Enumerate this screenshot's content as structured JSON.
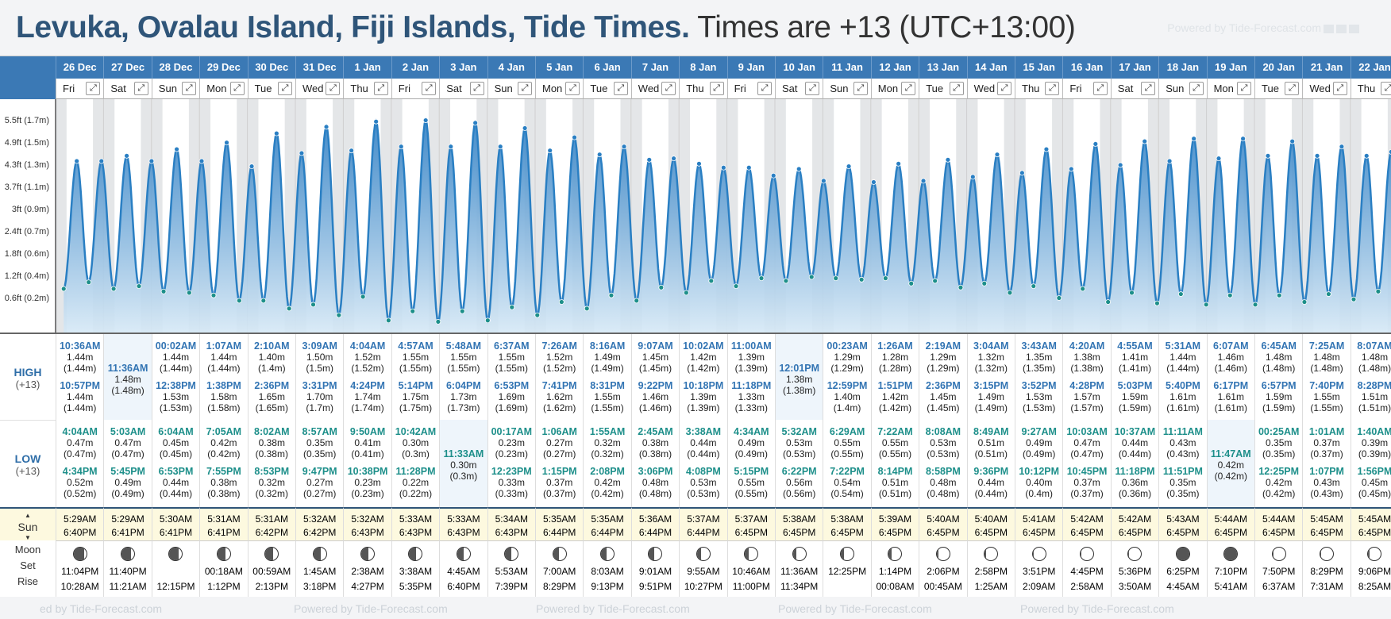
{
  "title": {
    "main": "Levuka, Ovalau Island, Fiji Islands, Tide Times.",
    "tz": "Times are +13 (UTC+13:00)"
  },
  "powered": "Powered by Tide-Forecast.com",
  "powered_partial": "ed by Tide-Forecast.com",
  "row_labels": {
    "high": "HIGH",
    "high_tz": "(+13)",
    "low": "LOW",
    "low_tz": "(+13)",
    "sun": "Sun",
    "moon": "Moon",
    "set": "Set",
    "rise": "Rise"
  },
  "yaxis": [
    "5.5ft (1.7m)",
    "4.9ft (1.5m)",
    "4.3ft (1.3m)",
    "3.7ft (1.1m)",
    "3ft (0.9m)",
    "2.4ft (0.7m)",
    "1.8ft (0.6m)",
    "1.2ft (0.4m)",
    "0.6ft (0.2m)"
  ],
  "colors": {
    "header": "#3b79b5",
    "curve": "#2a7fc3",
    "high_text": "#3274b3",
    "low_text": "#1d8f8a",
    "sun_bg": "#fdf9df"
  },
  "days": [
    {
      "date": "26 Dec",
      "dow": "Fri",
      "high": [
        [
          "10:36AM",
          "1.44m",
          "(1.44m)"
        ],
        [
          "10:57PM",
          "1.44m",
          "(1.44m)"
        ]
      ],
      "low": [
        [
          "4:04AM",
          "0.47m",
          "(0.47m)"
        ],
        [
          "4:34PM",
          "0.52m",
          "(0.52m)"
        ]
      ],
      "sunrise": "5:29AM",
      "sunset": "6:40PM",
      "moonset": "11:04PM",
      "moonrise": "10:28AM",
      "phase": 0.18
    },
    {
      "date": "27 Dec",
      "dow": "Sat",
      "high": [
        [
          "11:36AM",
          "1.48m",
          "(1.48m)"
        ]
      ],
      "low": [
        [
          "5:03AM",
          "0.47m",
          "(0.47m)"
        ],
        [
          "5:45PM",
          "0.49m",
          "(0.49m)"
        ]
      ],
      "sunrise": "5:29AM",
      "sunset": "6:41PM",
      "moonset": "11:40PM",
      "moonrise": "11:21AM",
      "phase": 0.25
    },
    {
      "date": "28 Dec",
      "dow": "Sun",
      "high": [
        [
          "00:02AM",
          "1.44m",
          "(1.44m)"
        ],
        [
          "12:38PM",
          "1.53m",
          "(1.53m)"
        ]
      ],
      "low": [
        [
          "6:04AM",
          "0.45m",
          "(0.45m)"
        ],
        [
          "6:53PM",
          "0.44m",
          "(0.44m)"
        ]
      ],
      "sunrise": "5:30AM",
      "sunset": "6:41PM",
      "moonset": "",
      "moonrise": "12:15PM",
      "phase": 0.3
    },
    {
      "date": "29 Dec",
      "dow": "Mon",
      "high": [
        [
          "1:07AM",
          "1.44m",
          "(1.44m)"
        ],
        [
          "1:38PM",
          "1.58m",
          "(1.58m)"
        ]
      ],
      "low": [
        [
          "7:05AM",
          "0.42m",
          "(0.42m)"
        ],
        [
          "7:55PM",
          "0.38m",
          "(0.38m)"
        ]
      ],
      "sunrise": "5:31AM",
      "sunset": "6:41PM",
      "moonset": "00:18AM",
      "moonrise": "1:12PM",
      "phase": 0.35
    },
    {
      "date": "30 Dec",
      "dow": "Tue",
      "high": [
        [
          "2:10AM",
          "1.40m",
          "(1.4m)"
        ],
        [
          "2:36PM",
          "1.65m",
          "(1.65m)"
        ]
      ],
      "low": [
        [
          "8:02AM",
          "0.38m",
          "(0.38m)"
        ],
        [
          "8:53PM",
          "0.32m",
          "(0.32m)"
        ]
      ],
      "sunrise": "5:31AM",
      "sunset": "6:42PM",
      "moonset": "00:59AM",
      "moonrise": "2:13PM",
      "phase": 0.4
    },
    {
      "date": "31 Dec",
      "dow": "Wed",
      "high": [
        [
          "3:09AM",
          "1.50m",
          "(1.5m)"
        ],
        [
          "3:31PM",
          "1.70m",
          "(1.7m)"
        ]
      ],
      "low": [
        [
          "8:57AM",
          "0.35m",
          "(0.35m)"
        ],
        [
          "9:47PM",
          "0.27m",
          "(0.27m)"
        ]
      ],
      "sunrise": "5:32AM",
      "sunset": "6:42PM",
      "moonset": "1:45AM",
      "moonrise": "3:18PM",
      "phase": 0.43
    },
    {
      "date": "1 Jan",
      "dow": "Thu",
      "high": [
        [
          "4:04AM",
          "1.52m",
          "(1.52m)"
        ],
        [
          "4:24PM",
          "1.74m",
          "(1.74m)"
        ]
      ],
      "low": [
        [
          "9:50AM",
          "0.41m",
          "(0.41m)"
        ],
        [
          "10:38PM",
          "0.23m",
          "(0.23m)"
        ]
      ],
      "sunrise": "5:32AM",
      "sunset": "6:43PM",
      "moonset": "2:38AM",
      "moonrise": "4:27PM",
      "phase": 0.46
    },
    {
      "date": "2 Jan",
      "dow": "Fri",
      "high": [
        [
          "4:57AM",
          "1.55m",
          "(1.55m)"
        ],
        [
          "5:14PM",
          "1.75m",
          "(1.75m)"
        ]
      ],
      "low": [
        [
          "10:42AM",
          "0.30m",
          "(0.3m)"
        ],
        [
          "11:28PM",
          "0.22m",
          "(0.22m)"
        ]
      ],
      "sunrise": "5:33AM",
      "sunset": "6:43PM",
      "moonset": "3:38AM",
      "moonrise": "5:35PM",
      "phase": 0.48
    },
    {
      "date": "3 Jan",
      "dow": "Sat",
      "high": [
        [
          "5:48AM",
          "1.55m",
          "(1.55m)"
        ],
        [
          "6:04PM",
          "1.73m",
          "(1.73m)"
        ]
      ],
      "low": [
        [
          "11:33AM",
          "0.30m",
          "(0.3m)"
        ]
      ],
      "sunrise": "5:33AM",
      "sunset": "6:43PM",
      "moonset": "4:45AM",
      "moonrise": "6:40PM",
      "phase": 0.5
    },
    {
      "date": "4 Jan",
      "dow": "Sun",
      "high": [
        [
          "6:37AM",
          "1.55m",
          "(1.55m)"
        ],
        [
          "6:53PM",
          "1.69m",
          "(1.69m)"
        ]
      ],
      "low": [
        [
          "00:17AM",
          "0.23m",
          "(0.23m)"
        ],
        [
          "12:23PM",
          "0.33m",
          "(0.33m)"
        ]
      ],
      "sunrise": "5:34AM",
      "sunset": "6:43PM",
      "moonset": "5:53AM",
      "moonrise": "7:39PM",
      "phase": 0.52
    },
    {
      "date": "5 Jan",
      "dow": "Mon",
      "high": [
        [
          "7:26AM",
          "1.52m",
          "(1.52m)"
        ],
        [
          "7:41PM",
          "1.62m",
          "(1.62m)"
        ]
      ],
      "low": [
        [
          "1:06AM",
          "0.27m",
          "(0.27m)"
        ],
        [
          "1:15PM",
          "0.37m",
          "(0.37m)"
        ]
      ],
      "sunrise": "5:35AM",
      "sunset": "6:44PM",
      "moonset": "7:00AM",
      "moonrise": "8:29PM",
      "phase": 0.55
    },
    {
      "date": "6 Jan",
      "dow": "Tue",
      "high": [
        [
          "8:16AM",
          "1.49m",
          "(1.49m)"
        ],
        [
          "8:31PM",
          "1.55m",
          "(1.55m)"
        ]
      ],
      "low": [
        [
          "1:55AM",
          "0.32m",
          "(0.32m)"
        ],
        [
          "2:08PM",
          "0.42m",
          "(0.42m)"
        ]
      ],
      "sunrise": "5:35AM",
      "sunset": "6:44PM",
      "moonset": "8:03AM",
      "moonrise": "9:13PM",
      "phase": 0.58
    },
    {
      "date": "7 Jan",
      "dow": "Wed",
      "high": [
        [
          "9:07AM",
          "1.45m",
          "(1.45m)"
        ],
        [
          "9:22PM",
          "1.46m",
          "(1.46m)"
        ]
      ],
      "low": [
        [
          "2:45AM",
          "0.38m",
          "(0.38m)"
        ],
        [
          "3:06PM",
          "0.48m",
          "(0.48m)"
        ]
      ],
      "sunrise": "5:36AM",
      "sunset": "6:44PM",
      "moonset": "9:01AM",
      "moonrise": "9:51PM",
      "phase": 0.62
    },
    {
      "date": "8 Jan",
      "dow": "Thu",
      "high": [
        [
          "10:02AM",
          "1.42m",
          "(1.42m)"
        ],
        [
          "10:18PM",
          "1.39m",
          "(1.39m)"
        ]
      ],
      "low": [
        [
          "3:38AM",
          "0.44m",
          "(0.44m)"
        ],
        [
          "4:08PM",
          "0.53m",
          "(0.53m)"
        ]
      ],
      "sunrise": "5:37AM",
      "sunset": "6:44PM",
      "moonset": "9:55AM",
      "moonrise": "10:27PM",
      "phase": 0.66
    },
    {
      "date": "9 Jan",
      "dow": "Fri",
      "high": [
        [
          "11:00AM",
          "1.39m",
          "(1.39m)"
        ],
        [
          "11:18PM",
          "1.33m",
          "(1.33m)"
        ]
      ],
      "low": [
        [
          "4:34AM",
          "0.49m",
          "(0.49m)"
        ],
        [
          "5:15PM",
          "0.55m",
          "(0.55m)"
        ]
      ],
      "sunrise": "5:37AM",
      "sunset": "6:45PM",
      "moonset": "10:46AM",
      "moonrise": "11:00PM",
      "phase": 0.7
    },
    {
      "date": "10 Jan",
      "dow": "Sat",
      "high": [
        [
          "12:01PM",
          "1.38m",
          "(1.38m)"
        ]
      ],
      "low": [
        [
          "5:32AM",
          "0.53m",
          "(0.53m)"
        ],
        [
          "6:22PM",
          "0.56m",
          "(0.56m)"
        ]
      ],
      "sunrise": "5:38AM",
      "sunset": "6:45PM",
      "moonset": "11:36AM",
      "moonrise": "11:34PM",
      "phase": 0.74
    },
    {
      "date": "11 Jan",
      "dow": "Sun",
      "high": [
        [
          "00:23AM",
          "1.29m",
          "(1.29m)"
        ],
        [
          "12:59PM",
          "1.40m",
          "(1.4m)"
        ]
      ],
      "low": [
        [
          "6:29AM",
          "0.55m",
          "(0.55m)"
        ],
        [
          "7:22PM",
          "0.54m",
          "(0.54m)"
        ]
      ],
      "sunrise": "5:38AM",
      "sunset": "6:45PM",
      "moonset": "12:25PM",
      "moonrise": "",
      "phase": 0.77
    },
    {
      "date": "12 Jan",
      "dow": "Mon",
      "high": [
        [
          "1:26AM",
          "1.28m",
          "(1.28m)"
        ],
        [
          "1:51PM",
          "1.42m",
          "(1.42m)"
        ]
      ],
      "low": [
        [
          "7:22AM",
          "0.55m",
          "(0.55m)"
        ],
        [
          "8:14PM",
          "0.51m",
          "(0.51m)"
        ]
      ],
      "sunrise": "5:39AM",
      "sunset": "6:45PM",
      "moonset": "1:14PM",
      "moonrise": "00:08AM",
      "phase": 0.8
    },
    {
      "date": "13 Jan",
      "dow": "Tue",
      "high": [
        [
          "2:19AM",
          "1.29m",
          "(1.29m)"
        ],
        [
          "2:36PM",
          "1.45m",
          "(1.45m)"
        ]
      ],
      "low": [
        [
          "8:08AM",
          "0.53m",
          "(0.53m)"
        ],
        [
          "8:58PM",
          "0.48m",
          "(0.48m)"
        ]
      ],
      "sunrise": "5:40AM",
      "sunset": "6:45PM",
      "moonset": "2:06PM",
      "moonrise": "00:45AM",
      "phase": 0.84
    },
    {
      "date": "14 Jan",
      "dow": "Wed",
      "high": [
        [
          "3:04AM",
          "1.32m",
          "(1.32m)"
        ],
        [
          "3:15PM",
          "1.49m",
          "(1.49m)"
        ]
      ],
      "low": [
        [
          "8:49AM",
          "0.51m",
          "(0.51m)"
        ],
        [
          "9:36PM",
          "0.44m",
          "(0.44m)"
        ]
      ],
      "sunrise": "5:40AM",
      "sunset": "6:45PM",
      "moonset": "2:58PM",
      "moonrise": "1:25AM",
      "phase": 0.88
    },
    {
      "date": "15 Jan",
      "dow": "Thu",
      "high": [
        [
          "3:43AM",
          "1.35m",
          "(1.35m)"
        ],
        [
          "3:52PM",
          "1.53m",
          "(1.53m)"
        ]
      ],
      "low": [
        [
          "9:27AM",
          "0.49m",
          "(0.49m)"
        ],
        [
          "10:12PM",
          "0.40m",
          "(0.4m)"
        ]
      ],
      "sunrise": "5:41AM",
      "sunset": "6:45PM",
      "moonset": "3:51PM",
      "moonrise": "2:09AM",
      "phase": 0.91
    },
    {
      "date": "16 Jan",
      "dow": "Fri",
      "high": [
        [
          "4:20AM",
          "1.38m",
          "(1.38m)"
        ],
        [
          "4:28PM",
          "1.57m",
          "(1.57m)"
        ]
      ],
      "low": [
        [
          "10:03AM",
          "0.47m",
          "(0.47m)"
        ],
        [
          "10:45PM",
          "0.37m",
          "(0.37m)"
        ]
      ],
      "sunrise": "5:42AM",
      "sunset": "6:45PM",
      "moonset": "4:45PM",
      "moonrise": "2:58AM",
      "phase": 0.94
    },
    {
      "date": "17 Jan",
      "dow": "Sat",
      "high": [
        [
          "4:55AM",
          "1.41m",
          "(1.41m)"
        ],
        [
          "5:03PM",
          "1.59m",
          "(1.59m)"
        ]
      ],
      "low": [
        [
          "10:37AM",
          "0.44m",
          "(0.44m)"
        ],
        [
          "11:18PM",
          "0.36m",
          "(0.36m)"
        ]
      ],
      "sunrise": "5:42AM",
      "sunset": "6:45PM",
      "moonset": "5:36PM",
      "moonrise": "3:50AM",
      "phase": 0.97
    },
    {
      "date": "18 Jan",
      "dow": "Sun",
      "high": [
        [
          "5:31AM",
          "1.44m",
          "(1.44m)"
        ],
        [
          "5:40PM",
          "1.61m",
          "(1.61m)"
        ]
      ],
      "low": [
        [
          "11:11AM",
          "0.43m",
          "(0.43m)"
        ],
        [
          "11:51PM",
          "0.35m",
          "(0.35m)"
        ]
      ],
      "sunrise": "5:43AM",
      "sunset": "6:45PM",
      "moonset": "6:25PM",
      "moonrise": "4:45AM",
      "phase": 1.0
    },
    {
      "date": "19 Jan",
      "dow": "Mon",
      "high": [
        [
          "6:07AM",
          "1.46m",
          "(1.46m)"
        ],
        [
          "6:17PM",
          "1.61m",
          "(1.61m)"
        ]
      ],
      "low": [
        [
          "11:47AM",
          "0.42m",
          "(0.42m)"
        ]
      ],
      "sunrise": "5:44AM",
      "sunset": "6:45PM",
      "moonset": "7:10PM",
      "moonrise": "5:41AM",
      "phase": 1.0
    },
    {
      "date": "20 Jan",
      "dow": "Tue",
      "high": [
        [
          "6:45AM",
          "1.48m",
          "(1.48m)"
        ],
        [
          "6:57PM",
          "1.59m",
          "(1.59m)"
        ]
      ],
      "low": [
        [
          "00:25AM",
          "0.35m",
          "(0.35m)"
        ],
        [
          "12:25PM",
          "0.42m",
          "(0.42m)"
        ]
      ],
      "sunrise": "5:44AM",
      "sunset": "6:45PM",
      "moonset": "7:50PM",
      "moonrise": "6:37AM",
      "phase": 0.97
    },
    {
      "date": "21 Jan",
      "dow": "Wed",
      "high": [
        [
          "7:25AM",
          "1.48m",
          "(1.48m)"
        ],
        [
          "7:40PM",
          "1.55m",
          "(1.55m)"
        ]
      ],
      "low": [
        [
          "1:01AM",
          "0.37m",
          "(0.37m)"
        ],
        [
          "1:07PM",
          "0.43m",
          "(0.43m)"
        ]
      ],
      "sunrise": "5:45AM",
      "sunset": "6:45PM",
      "moonset": "8:29PM",
      "moonrise": "7:31AM",
      "phase": 0.93
    },
    {
      "date": "22 Jan",
      "dow": "Thu",
      "high": [
        [
          "8:07AM",
          "1.48m",
          "(1.48m)"
        ],
        [
          "8:28PM",
          "1.51m",
          "(1.51m)"
        ]
      ],
      "low": [
        [
          "1:40AM",
          "0.39m",
          "(0.39m)"
        ],
        [
          "1:56PM",
          "0.45m",
          "(0.45m)"
        ]
      ],
      "sunrise": "5:45AM",
      "sunset": "6:45PM",
      "moonset": "9:06PM",
      "moonrise": "8:25AM",
      "phase": 0.9
    }
  ]
}
